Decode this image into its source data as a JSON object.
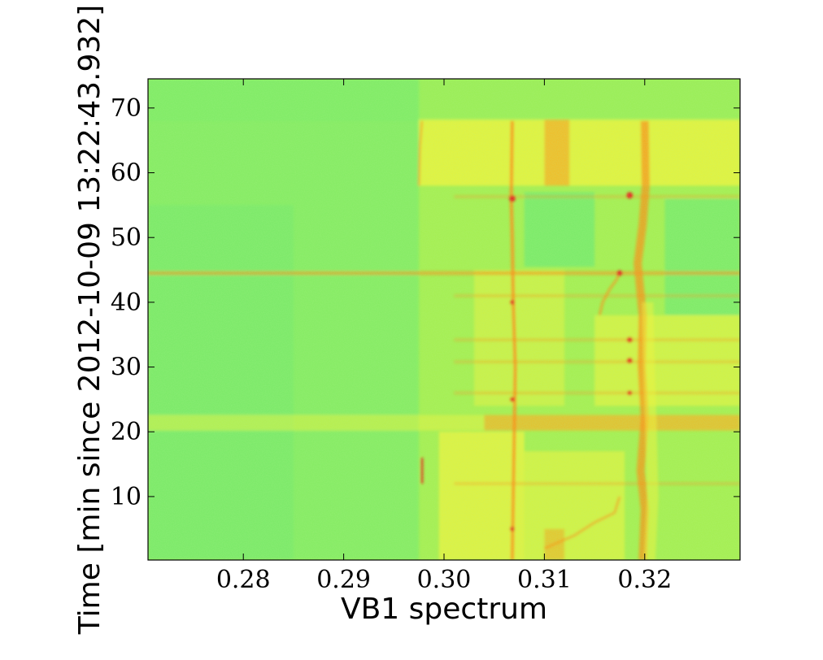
{
  "chart_data": {
    "type": "heatmap",
    "title": "",
    "xlabel": "VB1 spectrum",
    "ylabel": "Time [min since 2012-10-09 13:22:43.932]",
    "xlim": [
      0.2705,
      0.3295
    ],
    "ylim": [
      0.2,
      74.5
    ],
    "x_ticks": [
      {
        "value": 0.28,
        "label": "0.28"
      },
      {
        "value": 0.29,
        "label": "0.29"
      },
      {
        "value": 0.3,
        "label": "0.30"
      },
      {
        "value": 0.31,
        "label": "0.31"
      },
      {
        "value": 0.32,
        "label": "0.32"
      }
    ],
    "y_ticks": [
      {
        "value": 10,
        "label": "10"
      },
      {
        "value": 20,
        "label": "20"
      },
      {
        "value": 30,
        "label": "30"
      },
      {
        "value": 40,
        "label": "40"
      },
      {
        "value": 50,
        "label": "50"
      },
      {
        "value": 60,
        "label": "60"
      },
      {
        "value": 70,
        "label": "70"
      }
    ],
    "colormap": "jet",
    "colors": {
      "low": "#5fe87a",
      "background": "#a8f050",
      "mid": "#f6f43a",
      "high": "#ff8a14",
      "peak": "#e8201a"
    },
    "grid": false,
    "legend": "none"
  }
}
